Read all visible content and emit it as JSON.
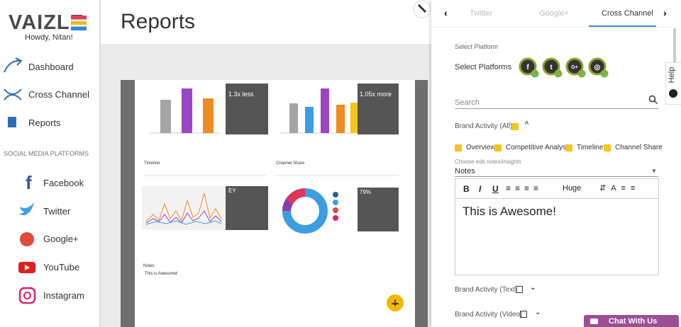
{
  "sidebar": {
    "logo": "VAIZLE",
    "greeting": "Howdy, Nitan!",
    "nav": [
      "Dashboard",
      "Cross Channel",
      "Reports"
    ],
    "section_title": "SOCIAL MEDIA PLATFORMS",
    "platforms": [
      "Facebook",
      "Twitter",
      "Google+",
      "YouTube",
      "Instagram"
    ]
  },
  "main": {
    "title": "Reports",
    "preview": {
      "stats": [
        "1.3x less",
        "1.05x more",
        "EY",
        "79%"
      ],
      "sections": [
        "Timeline",
        "Channel Share"
      ],
      "notes_title": "Notes",
      "notes_text": "This is Awesome!"
    }
  },
  "panel": {
    "tabs": [
      "Twitter",
      "Google+",
      "Cross Channel"
    ],
    "select_platform_heading": "Select Platform",
    "select_platforms_label": "Select Platforms",
    "search_placeholder": "Search",
    "brand_activity_all": "Brand Activity (All)",
    "options": [
      "Overview",
      "Competitive Analysis",
      "Timeline",
      "Channel Share"
    ],
    "notes_hint": "Choose edit notes/insights",
    "notes_select": "Notes",
    "toolbar": [
      "B",
      "I",
      "U"
    ],
    "font_size": "Huge",
    "editor_text": "This is Awesome!",
    "brand_activity_text": "Brand Activity (Text)",
    "brand_activity_video": "Brand Activity (Video)"
  },
  "help": "Help",
  "chat": "Chat With Us"
}
